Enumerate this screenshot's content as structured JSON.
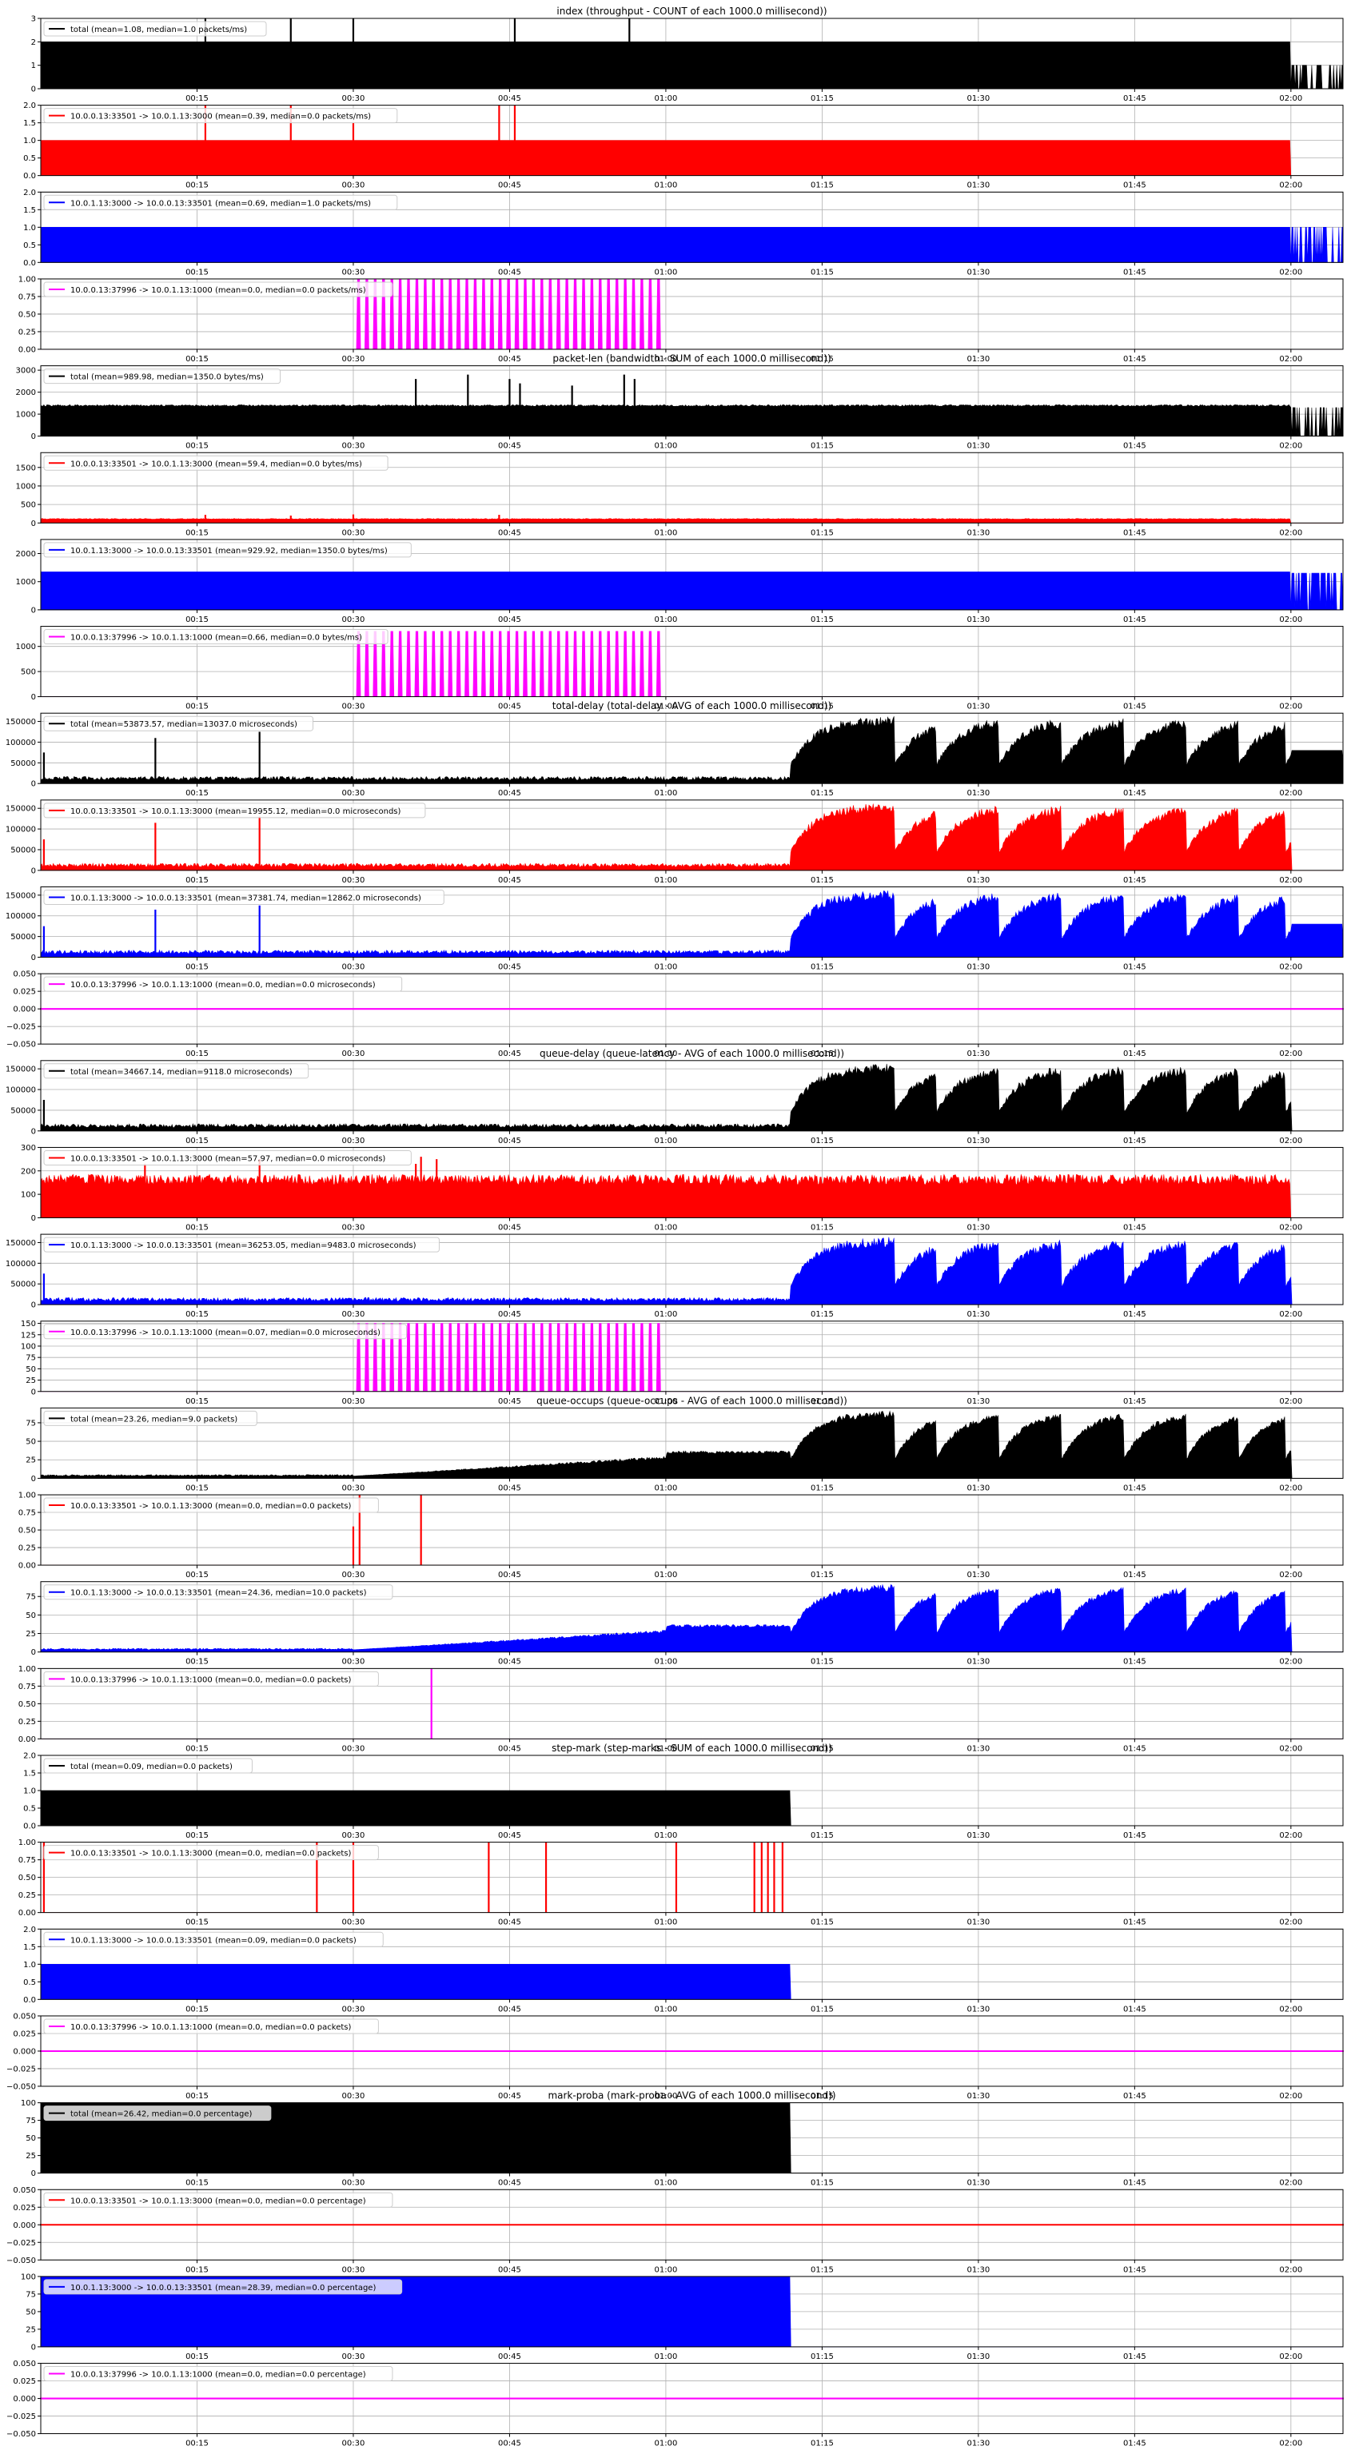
{
  "chart_data": {
    "type": "area",
    "x_axis": {
      "min_seconds": 0,
      "max_seconds": 125,
      "tick_labels": [
        "00:15",
        "00:30",
        "00:45",
        "01:00",
        "01:15",
        "01:30",
        "01:45",
        "02:00"
      ],
      "tick_seconds": [
        15,
        30,
        45,
        60,
        75,
        90,
        105,
        120
      ]
    },
    "grid": true,
    "legend_placement": "upper-left",
    "groups": [
      {
        "title": "index (throughput - COUNT of each 1000.0 millisecond))",
        "panels": [
          {
            "series": "total",
            "legend": "total (mean=1.08, median=1.0 packets/ms)",
            "color": "#000000",
            "ylim": [
              0,
              3
            ],
            "yticks": [
              "0",
              "1",
              "2",
              "3"
            ],
            "yvals": [
              0,
              1,
              2,
              3
            ]
          },
          {
            "series": "10.0.0.13:33501 -> 10.0.1.13:3000",
            "legend": "10.0.0.13:33501 -> 10.0.1.13:3000 (mean=0.39, median=0.0 packets/ms)",
            "color": "#ff0000",
            "ylim": [
              0,
              2
            ],
            "yticks": [
              "0.0",
              "0.5",
              "1.0",
              "1.5",
              "2.0"
            ],
            "yvals": [
              0,
              0.5,
              1,
              1.5,
              2
            ]
          },
          {
            "series": "10.0.1.13:3000 -> 10.0.0.13:33501",
            "legend": "10.0.1.13:3000 -> 10.0.0.13:33501 (mean=0.69, median=1.0 packets/ms)",
            "color": "#0000ff",
            "ylim": [
              0,
              2
            ],
            "yticks": [
              "0.0",
              "0.5",
              "1.0",
              "1.5",
              "2.0"
            ],
            "yvals": [
              0,
              0.5,
              1,
              1.5,
              2
            ]
          },
          {
            "series": "10.0.0.13:37996 -> 10.0.1.13:1000",
            "legend": "10.0.0.13:37996 -> 10.0.1.13:1000 (mean=0.0, median=0.0 packets/ms)",
            "color": "#ff00ff",
            "ylim": [
              0,
              1
            ],
            "yticks": [
              "0.00",
              "0.25",
              "0.50",
              "0.75",
              "1.00"
            ],
            "yvals": [
              0,
              0.25,
              0.5,
              0.75,
              1
            ]
          }
        ]
      },
      {
        "title": "packet-len (bandwidth - SUM of each 1000.0 millisecond))",
        "panels": [
          {
            "series": "total",
            "legend": "total (mean=989.98, median=1350.0 bytes/ms)",
            "color": "#000000",
            "ylim": [
              0,
              3200
            ],
            "yticks": [
              "0",
              "1000",
              "2000",
              "3000"
            ],
            "yvals": [
              0,
              1000,
              2000,
              3000
            ]
          },
          {
            "series": "10.0.0.13:33501 -> 10.0.1.13:3000",
            "legend": "10.0.0.13:33501 -> 10.0.1.13:3000 (mean=59.4, median=0.0 bytes/ms)",
            "color": "#ff0000",
            "ylim": [
              0,
              1900
            ],
            "yticks": [
              "0",
              "500",
              "1000",
              "1500"
            ],
            "yvals": [
              0,
              500,
              1000,
              1500
            ]
          },
          {
            "series": "10.0.1.13:3000 -> 10.0.0.13:33501",
            "legend": "10.0.1.13:3000 -> 10.0.0.13:33501 (mean=929.92, median=1350.0 bytes/ms)",
            "color": "#0000ff",
            "ylim": [
              0,
              2500
            ],
            "yticks": [
              "0",
              "1000",
              "2000"
            ],
            "yvals": [
              0,
              1000,
              2000
            ]
          },
          {
            "series": "10.0.0.13:37996 -> 10.0.1.13:1000",
            "legend": "10.0.0.13:37996 -> 10.0.1.13:1000 (mean=0.66, median=0.0 bytes/ms)",
            "color": "#ff00ff",
            "ylim": [
              0,
              1400
            ],
            "yticks": [
              "0",
              "500",
              "1000"
            ],
            "yvals": [
              0,
              500,
              1000
            ]
          }
        ]
      },
      {
        "title": "total-delay (total-delay - AVG of each 1000.0 millisecond))",
        "panels": [
          {
            "series": "total",
            "legend": "total (mean=53873.57, median=13037.0 microseconds)",
            "color": "#000000",
            "ylim": [
              0,
              170000
            ],
            "yticks": [
              "0",
              "50000",
              "100000",
              "150000"
            ],
            "yvals": [
              0,
              50000,
              100000,
              150000
            ]
          },
          {
            "series": "10.0.0.13:33501 -> 10.0.1.13:3000",
            "legend": "10.0.0.13:33501 -> 10.0.1.13:3000 (mean=19955.12, median=0.0 microseconds)",
            "color": "#ff0000",
            "ylim": [
              0,
              170000
            ],
            "yticks": [
              "0",
              "50000",
              "100000",
              "150000"
            ],
            "yvals": [
              0,
              50000,
              100000,
              150000
            ]
          },
          {
            "series": "10.0.1.13:3000 -> 10.0.0.13:33501",
            "legend": "10.0.1.13:3000 -> 10.0.0.13:33501 (mean=37381.74, median=12862.0 microseconds)",
            "color": "#0000ff",
            "ylim": [
              0,
              170000
            ],
            "yticks": [
              "0",
              "50000",
              "100000",
              "150000"
            ],
            "yvals": [
              0,
              50000,
              100000,
              150000
            ]
          },
          {
            "series": "10.0.0.13:37996 -> 10.0.1.13:1000",
            "legend": "10.0.0.13:37996 -> 10.0.1.13:1000 (mean=0.0, median=0.0 microseconds)",
            "color": "#ff00ff",
            "ylim": [
              -0.05,
              0.05
            ],
            "yticks": [
              "−0.050",
              "−0.025",
              "0.000",
              "0.025",
              "0.050"
            ],
            "yvals": [
              -0.05,
              -0.025,
              0,
              0.025,
              0.05
            ]
          }
        ]
      },
      {
        "title": "queue-delay (queue-latency - AVG of each 1000.0 millisecond))",
        "panels": [
          {
            "series": "total",
            "legend": "total (mean=34667.14, median=9118.0 microseconds)",
            "color": "#000000",
            "ylim": [
              0,
              170000
            ],
            "yticks": [
              "0",
              "50000",
              "100000",
              "150000"
            ],
            "yvals": [
              0,
              50000,
              100000,
              150000
            ]
          },
          {
            "series": "10.0.0.13:33501 -> 10.0.1.13:3000",
            "legend": "10.0.0.13:33501 -> 10.0.1.13:3000 (mean=57.97, median=0.0 microseconds)",
            "color": "#ff0000",
            "ylim": [
              0,
              300
            ],
            "yticks": [
              "0",
              "100",
              "200",
              "300"
            ],
            "yvals": [
              0,
              100,
              200,
              300
            ]
          },
          {
            "series": "10.0.1.13:3000 -> 10.0.0.13:33501",
            "legend": "10.0.1.13:3000 -> 10.0.0.13:33501 (mean=36253.05, median=9483.0 microseconds)",
            "color": "#0000ff",
            "ylim": [
              0,
              170000
            ],
            "yticks": [
              "0",
              "50000",
              "100000",
              "150000"
            ],
            "yvals": [
              0,
              50000,
              100000,
              150000
            ]
          },
          {
            "series": "10.0.0.13:37996 -> 10.0.1.13:1000",
            "legend": "10.0.0.13:37996 -> 10.0.1.13:1000 (mean=0.07, median=0.0 microseconds)",
            "color": "#ff00ff",
            "ylim": [
              0,
              155
            ],
            "yticks": [
              "0",
              "25",
              "50",
              "75",
              "100",
              "125",
              "150"
            ],
            "yvals": [
              0,
              25,
              50,
              75,
              100,
              125,
              150
            ]
          }
        ]
      },
      {
        "title": "queue-occups (queue-occups - AVG of each 1000.0 millisecond))",
        "panels": [
          {
            "series": "total",
            "legend": "total (mean=23.26, median=9.0 packets)",
            "color": "#000000",
            "ylim": [
              0,
              95
            ],
            "yticks": [
              "0",
              "25",
              "50",
              "75"
            ],
            "yvals": [
              0,
              25,
              50,
              75
            ]
          },
          {
            "series": "10.0.0.13:33501 -> 10.0.1.13:3000",
            "legend": "10.0.0.13:33501 -> 10.0.1.13:3000 (mean=0.0, median=0.0 packets)",
            "color": "#ff0000",
            "ylim": [
              0,
              1
            ],
            "yticks": [
              "0.00",
              "0.25",
              "0.50",
              "0.75",
              "1.00"
            ],
            "yvals": [
              0,
              0.25,
              0.5,
              0.75,
              1
            ]
          },
          {
            "series": "10.0.1.13:3000 -> 10.0.0.13:33501",
            "legend": "10.0.1.13:3000 -> 10.0.0.13:33501 (mean=24.36, median=10.0 packets)",
            "color": "#0000ff",
            "ylim": [
              0,
              95
            ],
            "yticks": [
              "0",
              "25",
              "50",
              "75"
            ],
            "yvals": [
              0,
              25,
              50,
              75
            ]
          },
          {
            "series": "10.0.0.13:37996 -> 10.0.1.13:1000",
            "legend": "10.0.0.13:37996 -> 10.0.1.13:1000 (mean=0.0, median=0.0 packets)",
            "color": "#ff00ff",
            "ylim": [
              0,
              1
            ],
            "yticks": [
              "0.00",
              "0.25",
              "0.50",
              "0.75",
              "1.00"
            ],
            "yvals": [
              0,
              0.25,
              0.5,
              0.75,
              1
            ]
          }
        ]
      },
      {
        "title": "step-mark (step-marks - SUM of each 1000.0 millisecond))",
        "panels": [
          {
            "series": "total",
            "legend": "total (mean=0.09, median=0.0 packets)",
            "color": "#000000",
            "ylim": [
              0,
              2
            ],
            "yticks": [
              "0.0",
              "0.5",
              "1.0",
              "1.5",
              "2.0"
            ],
            "yvals": [
              0,
              0.5,
              1,
              1.5,
              2
            ]
          },
          {
            "series": "10.0.0.13:33501 -> 10.0.1.13:3000",
            "legend": "10.0.0.13:33501 -> 10.0.1.13:3000 (mean=0.0, median=0.0 packets)",
            "color": "#ff0000",
            "ylim": [
              0,
              1
            ],
            "yticks": [
              "0.00",
              "0.25",
              "0.50",
              "0.75",
              "1.00"
            ],
            "yvals": [
              0,
              0.25,
              0.5,
              0.75,
              1
            ]
          },
          {
            "series": "10.0.1.13:3000 -> 10.0.0.13:33501",
            "legend": "10.0.1.13:3000 -> 10.0.0.13:33501 (mean=0.09, median=0.0 packets)",
            "color": "#0000ff",
            "ylim": [
              0,
              2
            ],
            "yticks": [
              "0.0",
              "0.5",
              "1.0",
              "1.5",
              "2.0"
            ],
            "yvals": [
              0,
              0.5,
              1,
              1.5,
              2
            ]
          },
          {
            "series": "10.0.0.13:37996 -> 10.0.1.13:1000",
            "legend": "10.0.0.13:37996 -> 10.0.1.13:1000 (mean=0.0, median=0.0 packets)",
            "color": "#ff00ff",
            "ylim": [
              -0.05,
              0.05
            ],
            "yticks": [
              "−0.050",
              "−0.025",
              "0.000",
              "0.025",
              "0.050"
            ],
            "yvals": [
              -0.05,
              -0.025,
              0,
              0.025,
              0.05
            ]
          }
        ]
      },
      {
        "title": "mark-proba (mark-proba - AVG of each 1000.0 millisecond))",
        "panels": [
          {
            "series": "total",
            "legend": "total (mean=26.42, median=0.0 percentage)",
            "color": "#000000",
            "ylim": [
              0,
              100
            ],
            "yticks": [
              "0",
              "25",
              "50",
              "75",
              "100"
            ],
            "yvals": [
              0,
              25,
              50,
              75,
              100
            ]
          },
          {
            "series": "10.0.0.13:33501 -> 10.0.1.13:3000",
            "legend": "10.0.0.13:33501 -> 10.0.1.13:3000 (mean=0.0, median=0.0 percentage)",
            "color": "#ff0000",
            "ylim": [
              -0.05,
              0.05
            ],
            "yticks": [
              "−0.050",
              "−0.025",
              "0.000",
              "0.025",
              "0.050"
            ],
            "yvals": [
              -0.05,
              -0.025,
              0,
              0.025,
              0.05
            ]
          },
          {
            "series": "10.0.1.13:3000 -> 10.0.0.13:33501",
            "legend": "10.0.1.13:3000 -> 10.0.0.13:33501 (mean=28.39, median=0.0 percentage)",
            "color": "#0000ff",
            "ylim": [
              0,
              100
            ],
            "yticks": [
              "0",
              "25",
              "50",
              "75",
              "100"
            ],
            "yvals": [
              0,
              25,
              50,
              75,
              100
            ]
          },
          {
            "series": "10.0.0.13:37996 -> 10.0.1.13:1000",
            "legend": "10.0.0.13:37996 -> 10.0.1.13:1000 (mean=0.0, median=0.0 percentage)",
            "color": "#ff00ff",
            "ylim": [
              -0.05,
              0.05
            ],
            "yticks": [
              "−0.050",
              "−0.025",
              "0.000",
              "0.025",
              "0.050"
            ],
            "yvals": [
              -0.05,
              -0.025,
              0,
              0.025,
              0.05
            ]
          }
        ]
      }
    ]
  }
}
